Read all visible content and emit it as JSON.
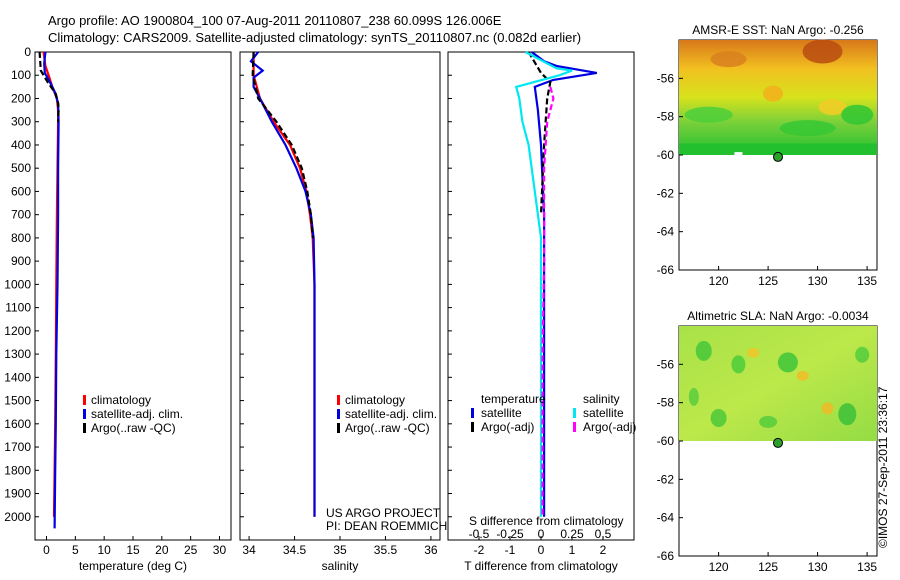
{
  "title_line1": "Argo profile: AO 1900804_100 07-Aug-2011 20110807_238 60.099S 126.006E",
  "title_line2": "Climatology: CARS2009. Satellite-adjusted climatology: synTS_20110807.nc (0.082d earlier)",
  "credit": "©IMOS 27-Sep-2011 23:36:17",
  "project_line1": "US ARGO PROJECT",
  "project_line2": "PI: DEAN ROEMMICH",
  "colors": {
    "red": "#ff0000",
    "blue": "#0000e0",
    "black": "#000000",
    "cyan": "#00e8f0",
    "magenta": "#ff00ff"
  },
  "chart_data": [
    {
      "type": "line",
      "xlabel": "temperature (deg C)",
      "xlim": [
        -2,
        32
      ],
      "ylim": [
        0,
        2100
      ],
      "xticks": [
        "0",
        "5",
        "10",
        "15",
        "20",
        "25",
        "30"
      ],
      "yticks": [
        "0",
        "100",
        "200",
        "300",
        "400",
        "500",
        "600",
        "700",
        "800",
        "900",
        "1000",
        "1100",
        "1200",
        "1300",
        "1400",
        "1500",
        "1600",
        "1700",
        "1800",
        "1900",
        "2000"
      ],
      "legend": [
        "climatology",
        "satellite-adj. clim.",
        "Argo(..raw -QC)"
      ],
      "series": [
        {
          "name": "climatology",
          "color": "red",
          "dash": "",
          "x": [
            -0.5,
            -0.2,
            0.5,
            1.0,
            1.8,
            2.0,
            2.0,
            1.9,
            1.8,
            1.7,
            1.6,
            1.5,
            1.4,
            1.3
          ],
          "y": [
            0,
            60,
            110,
            150,
            200,
            250,
            300,
            500,
            700,
            1000,
            1300,
            1600,
            1800,
            2000
          ]
        },
        {
          "name": "satellite-adj. clim.",
          "color": "blue",
          "dash": "",
          "x": [
            -0.2,
            -0.4,
            -0.3,
            0.6,
            1.4,
            2.0,
            2.1,
            2.0,
            2.0,
            1.9,
            1.7,
            1.6,
            1.5,
            1.4
          ],
          "y": [
            0,
            50,
            90,
            130,
            170,
            220,
            300,
            500,
            700,
            1000,
            1300,
            1600,
            1800,
            2050
          ]
        },
        {
          "name": "Argo(..raw -QC)",
          "color": "black",
          "dash": "6,3",
          "x": [
            -1.2,
            -1.0,
            0.2,
            1.6,
            2.0,
            2.1,
            2.0
          ],
          "y": [
            0,
            80,
            130,
            180,
            220,
            250,
            300
          ]
        }
      ]
    },
    {
      "type": "line",
      "xlabel": "salinity",
      "xlim": [
        33.9,
        36.1
      ],
      "ylim": [
        0,
        2100
      ],
      "xticks": [
        "34",
        "34.5",
        "35",
        "35.5",
        "36"
      ],
      "legend": [
        "climatology",
        "satellite-adj. clim.",
        "Argo(..raw -QC)"
      ],
      "series": [
        {
          "name": "climatology",
          "color": "red",
          "dash": "",
          "x": [
            34.05,
            34.05,
            34.12,
            34.27,
            34.45,
            34.56,
            34.63,
            34.67,
            34.7,
            34.71,
            34.72,
            34.72,
            34.72
          ],
          "y": [
            0,
            100,
            200,
            300,
            400,
            500,
            600,
            700,
            800,
            900,
            1000,
            1500,
            2000
          ]
        },
        {
          "name": "satellite-adj. clim.",
          "color": "blue",
          "dash": "",
          "x": [
            34.1,
            34.02,
            34.15,
            34.05,
            34.05,
            34.12,
            34.25,
            34.4,
            34.52,
            34.62,
            34.68,
            34.71,
            34.72,
            34.72,
            34.72
          ],
          "y": [
            0,
            40,
            80,
            110,
            150,
            200,
            300,
            400,
            500,
            600,
            700,
            800,
            1000,
            1500,
            2000
          ]
        },
        {
          "name": "Argo(..raw -QC)",
          "color": "black",
          "dash": "6,3",
          "x": [
            34.05,
            34.04,
            34.1,
            34.3,
            34.47,
            34.58,
            34.64,
            34.68,
            34.7
          ],
          "y": [
            0,
            100,
            200,
            300,
            400,
            500,
            600,
            700,
            800
          ]
        }
      ]
    },
    {
      "type": "line",
      "xlabel": "T difference from climatology",
      "x2label": "S difference from climatology",
      "xlim": [
        -3,
        3
      ],
      "ylim": [
        0,
        2100
      ],
      "xticks": [
        "-2",
        "-1",
        "0",
        "1",
        "2"
      ],
      "x2ticks": [
        "-0.5",
        "-0.25",
        "0",
        "0.25",
        "0.5"
      ],
      "legend_groups": [
        "temperature",
        "salinity"
      ],
      "legend": [
        "satellite",
        "Argo(-adj)",
        "satellite",
        "Argo(-adj)"
      ],
      "series": [
        {
          "name": "satellite",
          "color": "blue",
          "dash": "",
          "x": [
            -0.3,
            0.1,
            0.5,
            1.8,
            0.4,
            -0.2,
            -0.1,
            0.0,
            0.1,
            0.1,
            0.1,
            0.1
          ],
          "y": [
            0,
            40,
            60,
            90,
            120,
            150,
            250,
            400,
            700,
            1000,
            1500,
            2000
          ]
        },
        {
          "name": "Argo(-adj)",
          "color": "black",
          "dash": "6,3",
          "x": [
            -0.4,
            0.0,
            0.3,
            0.2,
            0.1,
            0.0
          ],
          "y": [
            0,
            90,
            130,
            200,
            400,
            700
          ]
        },
        {
          "name": "satellite",
          "color": "cyan",
          "dash": "",
          "x": [
            -0.5,
            0.5,
            1.0,
            0.6,
            -0.8,
            -0.7,
            -0.6,
            -0.4,
            -0.2,
            0.0,
            0.0,
            0.0
          ],
          "y": [
            0,
            70,
            80,
            100,
            150,
            200,
            300,
            400,
            600,
            800,
            1200,
            2000
          ]
        },
        {
          "name": "Argo(-adj)",
          "color": "magenta",
          "dash": "6,3",
          "x": [
            0.3,
            0.4,
            0.2,
            0.1,
            0.1,
            0.05,
            0.05
          ],
          "y": [
            150,
            200,
            300,
            500,
            900,
            1300,
            2000
          ]
        }
      ]
    },
    {
      "type": "heatmap",
      "title": "AMSR-E SST: NaN Argo: -0.256",
      "xlim": [
        116,
        136
      ],
      "ylim": [
        -66,
        -54
      ],
      "xticks": [
        "120",
        "125",
        "130",
        "135"
      ],
      "yticks": [
        "-56",
        "-58",
        "-60",
        "-62",
        "-64",
        "-66"
      ],
      "marker": {
        "lon": 126.0,
        "lat": -60.1
      }
    },
    {
      "type": "heatmap",
      "title": "Altimetric SLA: NaN Argo: -0.0034",
      "xlim": [
        116,
        136
      ],
      "ylim": [
        -66,
        -54
      ],
      "xticks": [
        "120",
        "125",
        "130",
        "135"
      ],
      "yticks": [
        "-56",
        "-58",
        "-60",
        "-62",
        "-64",
        "-66"
      ],
      "marker": {
        "lon": 126.0,
        "lat": -60.1
      }
    }
  ]
}
